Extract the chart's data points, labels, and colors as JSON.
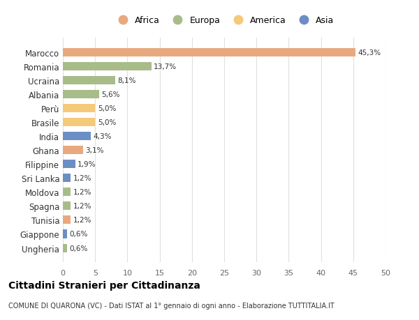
{
  "countries": [
    "Marocco",
    "Romania",
    "Ucraina",
    "Albania",
    "Perù",
    "Brasile",
    "India",
    "Ghana",
    "Filippine",
    "Sri Lanka",
    "Moldova",
    "Spagna",
    "Tunisia",
    "Giappone",
    "Ungheria"
  ],
  "values": [
    45.3,
    13.7,
    8.1,
    5.6,
    5.0,
    5.0,
    4.3,
    3.1,
    1.9,
    1.2,
    1.2,
    1.2,
    1.2,
    0.6,
    0.6
  ],
  "labels": [
    "45,3%",
    "13,7%",
    "8,1%",
    "5,6%",
    "5,0%",
    "5,0%",
    "4,3%",
    "3,1%",
    "1,9%",
    "1,2%",
    "1,2%",
    "1,2%",
    "1,2%",
    "0,6%",
    "0,6%"
  ],
  "continents": [
    "Africa",
    "Europa",
    "Europa",
    "Europa",
    "America",
    "America",
    "Asia",
    "Africa",
    "Asia",
    "Asia",
    "Europa",
    "Europa",
    "Africa",
    "Asia",
    "Europa"
  ],
  "colors": {
    "Africa": "#E8A97E",
    "Europa": "#A8BC8A",
    "America": "#F5C97A",
    "Asia": "#6B8FC4"
  },
  "legend_order": [
    "Africa",
    "Europa",
    "America",
    "Asia"
  ],
  "title": "Cittadini Stranieri per Cittadinanza",
  "subtitle": "COMUNE DI QUARONA (VC) - Dati ISTAT al 1° gennaio di ogni anno - Elaborazione TUTTITALIA.IT",
  "xlim": [
    0,
    50
  ],
  "xticks": [
    0,
    5,
    10,
    15,
    20,
    25,
    30,
    35,
    40,
    45,
    50
  ],
  "background_color": "#ffffff",
  "grid_color": "#e0e0e0"
}
